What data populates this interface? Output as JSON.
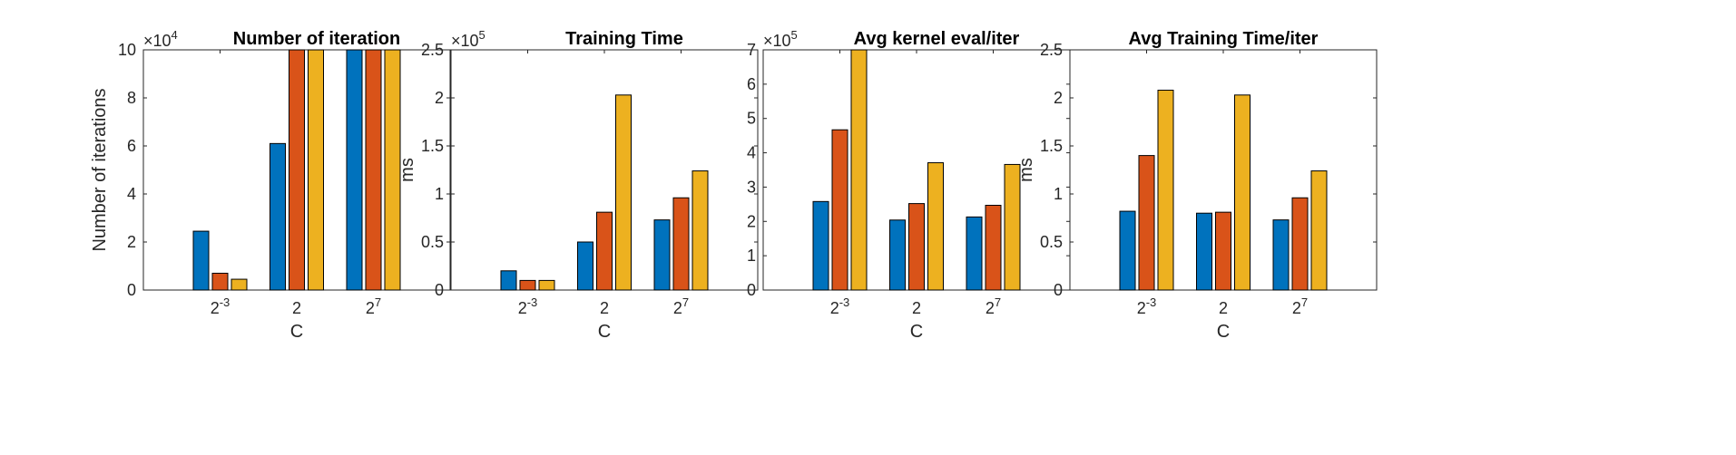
{
  "chart_data": [
    {
      "type": "bar",
      "title": "Number of iteration",
      "xlabel": "C",
      "ylabel": "Number of iterations",
      "categories": [
        {
          "base": "2",
          "sup": "-3"
        },
        {
          "base": "2",
          "sup": ""
        },
        {
          "base": "2",
          "sup": "7"
        }
      ],
      "multiplier": {
        "base": "×10",
        "exp": "4"
      },
      "ylim": [
        0,
        10
      ],
      "yticks": [
        "0",
        "2",
        "4",
        "6",
        "8",
        "10"
      ],
      "ytick_values": [
        0,
        2,
        4,
        6,
        8,
        10
      ],
      "series": [
        {
          "color": "#0072BD",
          "values": [
            2.45,
            6.1,
            10
          ]
        },
        {
          "color": "#D95319",
          "values": [
            0.7,
            10,
            10
          ]
        },
        {
          "color": "#EDB120",
          "values": [
            0.45,
            10,
            10
          ]
        }
      ]
    },
    {
      "type": "bar",
      "title": "Training Time",
      "xlabel": "C",
      "ylabel": "ms",
      "categories": [
        {
          "base": "2",
          "sup": "-3"
        },
        {
          "base": "2",
          "sup": ""
        },
        {
          "base": "2",
          "sup": "7"
        }
      ],
      "multiplier": {
        "base": "×10",
        "exp": "5"
      },
      "ylim": [
        0,
        2.5
      ],
      "yticks": [
        "0",
        "0.5",
        "1",
        "1.5",
        "2",
        "2.5"
      ],
      "ytick_values": [
        0,
        0.5,
        1,
        1.5,
        2,
        2.5
      ],
      "series": [
        {
          "color": "#0072BD",
          "values": [
            0.2,
            0.5,
            0.73
          ]
        },
        {
          "color": "#D95319",
          "values": [
            0.1,
            0.81,
            0.96
          ]
        },
        {
          "color": "#EDB120",
          "values": [
            0.1,
            2.03,
            1.24
          ]
        }
      ]
    },
    {
      "type": "bar",
      "title": "Avg kernel eval/iter",
      "xlabel": "C",
      "ylabel": "",
      "categories": [
        {
          "base": "2",
          "sup": "-3"
        },
        {
          "base": "2",
          "sup": ""
        },
        {
          "base": "2",
          "sup": "7"
        }
      ],
      "multiplier": {
        "base": "×10",
        "exp": "5"
      },
      "ylim": [
        0,
        7
      ],
      "yticks": [
        "0",
        "1",
        "2",
        "3",
        "4",
        "5",
        "6",
        "7"
      ],
      "ytick_values": [
        0,
        1,
        2,
        3,
        4,
        5,
        6,
        7
      ],
      "series": [
        {
          "color": "#0072BD",
          "values": [
            2.58,
            2.04,
            2.13
          ]
        },
        {
          "color": "#D95319",
          "values": [
            4.67,
            2.52,
            2.47
          ]
        },
        {
          "color": "#EDB120",
          "values": [
            7.0,
            3.71,
            3.66
          ]
        }
      ]
    },
    {
      "type": "bar",
      "title": "Avg Training Time/iter",
      "xlabel": "C",
      "ylabel": "ms",
      "categories": [
        {
          "base": "2",
          "sup": "-3"
        },
        {
          "base": "2",
          "sup": ""
        },
        {
          "base": "2",
          "sup": "7"
        }
      ],
      "multiplier": null,
      "ylim": [
        0,
        2.5
      ],
      "yticks": [
        "0",
        "0.5",
        "1",
        "1.5",
        "2",
        "2.5"
      ],
      "ytick_values": [
        0,
        0.5,
        1,
        1.5,
        2,
        2.5
      ],
      "series": [
        {
          "color": "#0072BD",
          "values": [
            0.82,
            0.8,
            0.73
          ]
        },
        {
          "color": "#D95319",
          "values": [
            1.4,
            0.81,
            0.96
          ]
        },
        {
          "color": "#EDB120",
          "values": [
            2.08,
            2.03,
            1.24
          ]
        }
      ]
    }
  ]
}
